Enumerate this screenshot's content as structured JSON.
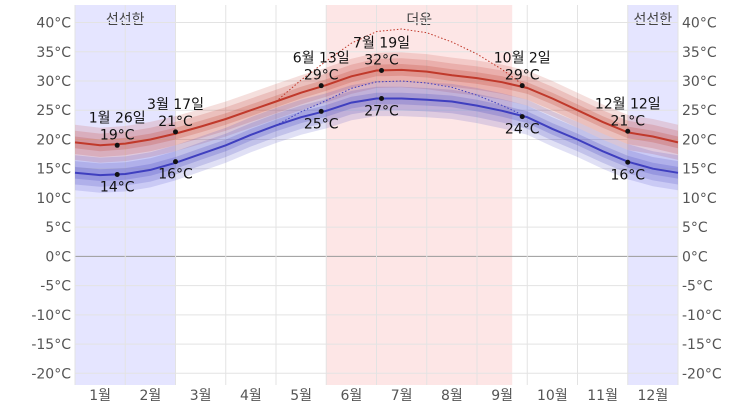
{
  "chart_data": {
    "type": "line",
    "title": "",
    "xlabel": "",
    "ylabel": "",
    "months": [
      "1월",
      "2월",
      "3월",
      "4월",
      "5월",
      "6월",
      "7월",
      "8월",
      "9월",
      "10월",
      "11월",
      "12월"
    ],
    "y_ticks": [
      "40°C",
      "35°C",
      "30°C",
      "25°C",
      "20°C",
      "15°C",
      "10°C",
      "5°C",
      "0°C",
      "-5°C",
      "-10°C",
      "-15°C",
      "-20°C"
    ],
    "ylim": [
      -22,
      43
    ],
    "grid": true,
    "seasons": [
      {
        "label": "선선한",
        "start_month": 1.0,
        "end_month": 3.0,
        "color": "#e5e5ff"
      },
      {
        "label": "더운",
        "start_month": 6.0,
        "end_month": 9.7,
        "color": "#fde6e6"
      },
      {
        "label": "선선한",
        "start_month": 12.0,
        "end_month": 13.0,
        "color": "#e5e5ff"
      }
    ],
    "series": [
      {
        "role": "high",
        "color": "#c0392b",
        "x": [
          1.0,
          1.5,
          2.0,
          2.5,
          3.0,
          3.5,
          4.0,
          4.5,
          5.0,
          5.5,
          6.0,
          6.5,
          7.0,
          7.5,
          8.0,
          8.5,
          9.0,
          9.5,
          10.0,
          10.5,
          11.0,
          11.5,
          12.0,
          12.5,
          13.0
        ],
        "values": [
          19.5,
          19.0,
          19.3,
          20.0,
          21.0,
          22.2,
          23.5,
          25.0,
          26.5,
          28.0,
          29.3,
          30.8,
          31.8,
          31.9,
          31.6,
          31.0,
          30.5,
          29.8,
          28.8,
          27.0,
          25.0,
          23.0,
          21.2,
          20.5,
          19.5
        ]
      },
      {
        "role": "low",
        "color": "#3f3fbf",
        "x": [
          1.0,
          1.5,
          2.0,
          2.5,
          3.0,
          3.5,
          4.0,
          4.5,
          5.0,
          5.5,
          6.0,
          6.5,
          7.0,
          7.5,
          8.0,
          8.5,
          9.0,
          9.5,
          10.0,
          10.5,
          11.0,
          11.5,
          12.0,
          12.5,
          13.0
        ],
        "values": [
          14.3,
          13.9,
          14.1,
          14.8,
          16.0,
          17.5,
          19.0,
          20.8,
          22.4,
          23.8,
          24.9,
          26.3,
          27.0,
          27.0,
          26.8,
          26.5,
          25.8,
          24.9,
          23.8,
          21.8,
          20.0,
          18.0,
          16.2,
          15.0,
          14.3
        ]
      }
    ],
    "annotations": [
      {
        "date": "1월 26일",
        "temp": "19°C",
        "x": 1.84,
        "y": 19,
        "pos": "above"
      },
      {
        "date": "",
        "temp": "14°C",
        "x": 1.84,
        "y": 14,
        "pos": "below"
      },
      {
        "date": "3월 17일",
        "temp": "21°C",
        "x": 3.0,
        "y": 21.3,
        "pos": "above"
      },
      {
        "date": "",
        "temp": "16°C",
        "x": 3.0,
        "y": 16.2,
        "pos": "below"
      },
      {
        "date": "6월 13일",
        "temp": "29°C",
        "x": 5.9,
        "y": 29.2,
        "pos": "above"
      },
      {
        "date": "",
        "temp": "25°C",
        "x": 5.9,
        "y": 24.8,
        "pos": "below"
      },
      {
        "date": "7월 19일",
        "temp": "32°C",
        "x": 7.1,
        "y": 31.8,
        "pos": "above"
      },
      {
        "date": "",
        "temp": "27°C",
        "x": 7.1,
        "y": 27.0,
        "pos": "below"
      },
      {
        "date": "10월 2일",
        "temp": "29°C",
        "x": 9.9,
        "y": 29.2,
        "pos": "above"
      },
      {
        "date": "",
        "temp": "24°C",
        "x": 9.9,
        "y": 23.9,
        "pos": "below"
      },
      {
        "date": "12월 12일",
        "temp": "21°C",
        "x": 12.0,
        "y": 21.4,
        "pos": "above"
      },
      {
        "date": "",
        "temp": "16°C",
        "x": 12.0,
        "y": 16.1,
        "pos": "below"
      }
    ]
  }
}
